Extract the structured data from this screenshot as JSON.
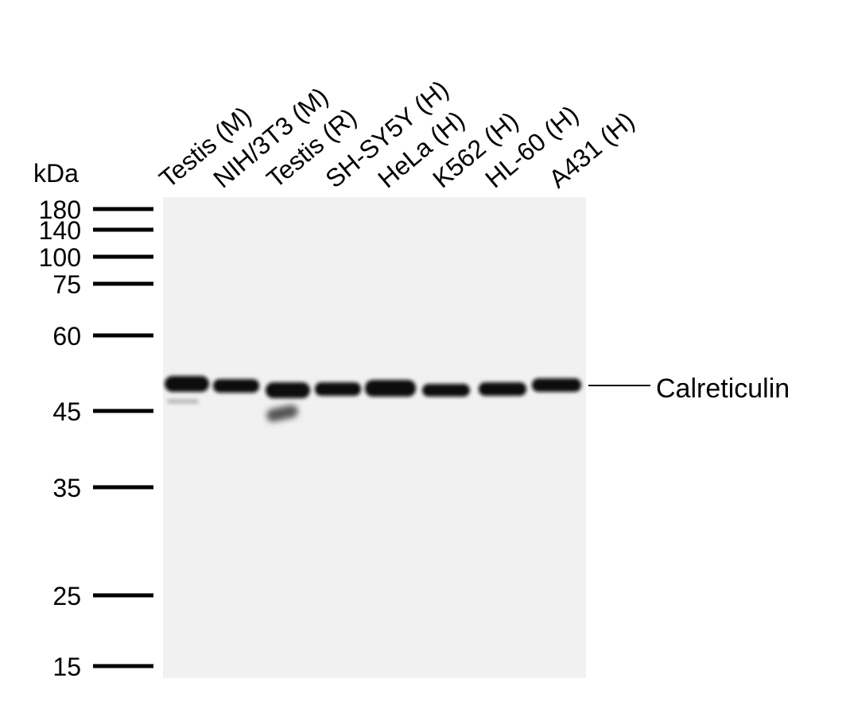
{
  "unit_label": "kDa",
  "lanes": [
    "Testis (M)",
    "NIH/3T3 (M)",
    "Testis (R)",
    "SH-SY5Y (H)",
    "HeLa (H)",
    "K562 (H)",
    "HL-60 (H)",
    "A431 (H)"
  ],
  "markers": [
    "180",
    "140",
    "100",
    "75",
    "60",
    "45",
    "35",
    "25",
    "15"
  ],
  "band_label": "Calreticulin"
}
